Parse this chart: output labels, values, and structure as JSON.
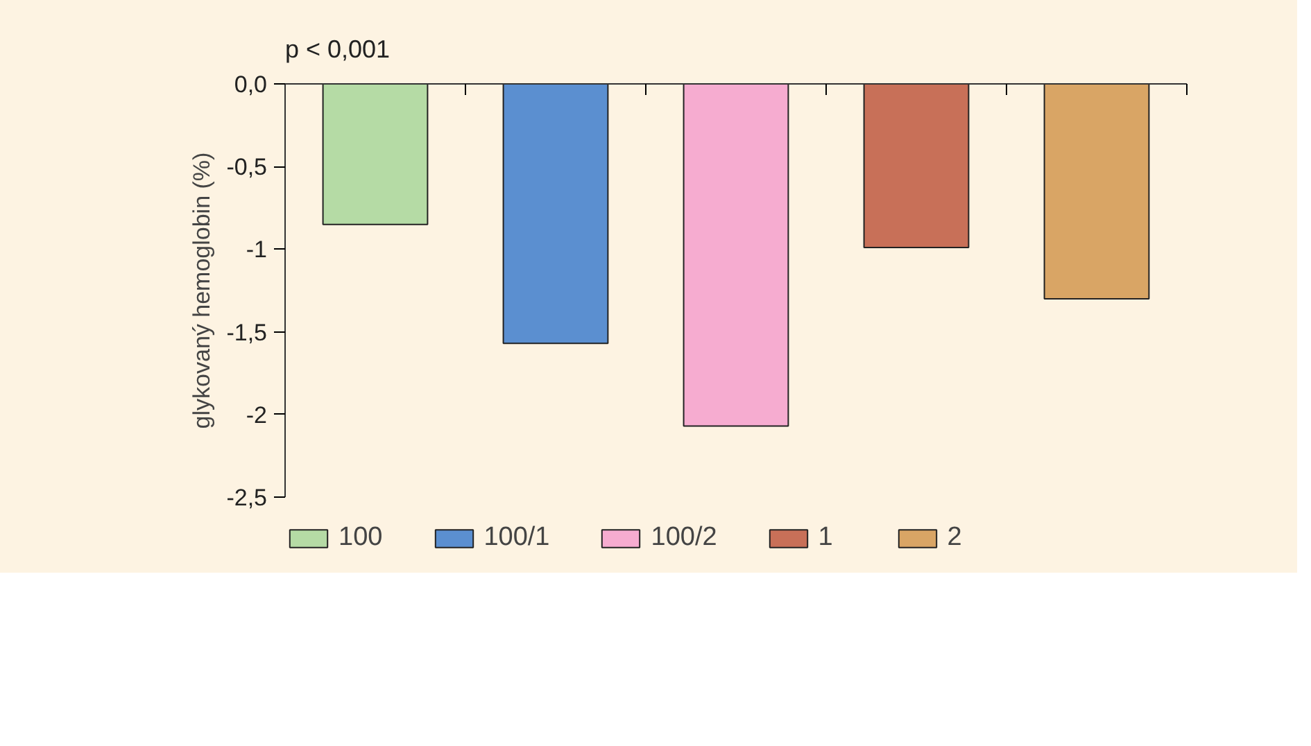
{
  "chart_data": {
    "type": "bar",
    "ylabel": "glykovaný hemoglobin (%)",
    "annotations": [
      "p < 0,001"
    ],
    "categories": [
      null,
      null,
      null,
      null,
      null
    ],
    "series": [
      {
        "name": "100",
        "color": "#b5dba5",
        "values": [
          -0.85,
          null,
          null,
          null,
          null
        ]
      },
      {
        "name": "100/1",
        "color": "#5b8fd0",
        "values": [
          null,
          -1.57,
          null,
          null,
          null
        ]
      },
      {
        "name": "100/2",
        "color": "#f6acd0",
        "values": [
          null,
          null,
          -2.07,
          null,
          null
        ]
      },
      {
        "name": "1",
        "color": "#c87058",
        "values": [
          null,
          null,
          null,
          -0.99,
          null
        ]
      },
      {
        "name": "2",
        "color": "#d9a565",
        "values": [
          null,
          null,
          null,
          null,
          -1.3
        ]
      }
    ],
    "ylim": [
      -2.5,
      0
    ],
    "yticks": [
      {
        "value": 0,
        "label": "0,0"
      },
      {
        "value": -0.5,
        "label": "-0,5"
      },
      {
        "value": -1,
        "label": "-1"
      },
      {
        "value": -1.5,
        "label": "-1,5"
      },
      {
        "value": -2,
        "label": "-2"
      },
      {
        "value": -2.5,
        "label": "-2,5"
      }
    ],
    "grid": false,
    "legend": "bottom"
  }
}
